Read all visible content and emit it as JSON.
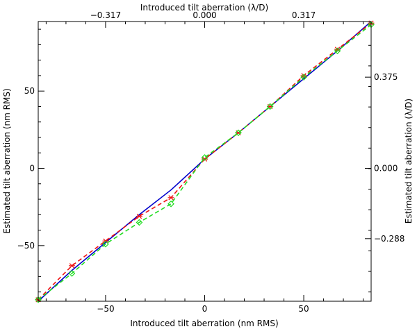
{
  "chart_data": {
    "type": "line",
    "xlabel_bottom": "Introduced tilt aberration (nm RMS)",
    "xlabel_top": "Introduced tilt aberration (λ/D)",
    "ylabel_left": "Estimated tilt aberration (nm RMS)",
    "ylabel_right": "Estimated tilt aberration (λ/D)",
    "xlim": [
      -84,
      84
    ],
    "ylim": [
      -86,
      95
    ],
    "x_ticks_bottom": [
      {
        "value": -50,
        "label": "−50"
      },
      {
        "value": 0,
        "label": "0"
      },
      {
        "value": 50,
        "label": "50"
      }
    ],
    "y_ticks_left": [
      {
        "value": -50,
        "label": "−50"
      },
      {
        "value": 0,
        "label": "0"
      },
      {
        "value": 50,
        "label": "50"
      }
    ],
    "x_ticks_top": [
      {
        "value": -50,
        "label": "−0.317"
      },
      {
        "value": 0,
        "label": "0.000"
      },
      {
        "value": 50,
        "label": "0.317"
      }
    ],
    "y_ticks_right": [
      {
        "value": 59,
        "label": "0.375"
      },
      {
        "value": 0,
        "label": "0.000"
      },
      {
        "value": -45.5,
        "label": "−0.288"
      }
    ],
    "grid": false,
    "series": [
      {
        "color": "#0000cc",
        "style": "solid",
        "marker": "none",
        "x": [
          -84,
          -67,
          -50,
          -33,
          -17,
          0,
          17,
          33,
          50,
          67,
          84
        ],
        "y": [
          -86,
          -66,
          -48,
          -30,
          -14,
          6,
          23,
          40,
          58,
          76,
          95
        ]
      },
      {
        "color": "#ee1111",
        "style": "dashed",
        "marker": "asterisk",
        "x": [
          -84,
          -67,
          -50,
          -33,
          -17,
          0,
          17,
          33,
          50,
          67,
          84
        ],
        "y": [
          -85,
          -63,
          -47,
          -31,
          -19,
          6,
          23,
          40,
          60,
          77,
          94
        ]
      },
      {
        "color": "#22dd22",
        "style": "dashed",
        "marker": "diamond",
        "x": [
          -84,
          -67,
          -50,
          -33,
          -17,
          0,
          17,
          33,
          50,
          67,
          84
        ],
        "y": [
          -85,
          -68,
          -49,
          -35,
          -23,
          7,
          23,
          40,
          59,
          76,
          93
        ]
      }
    ]
  }
}
